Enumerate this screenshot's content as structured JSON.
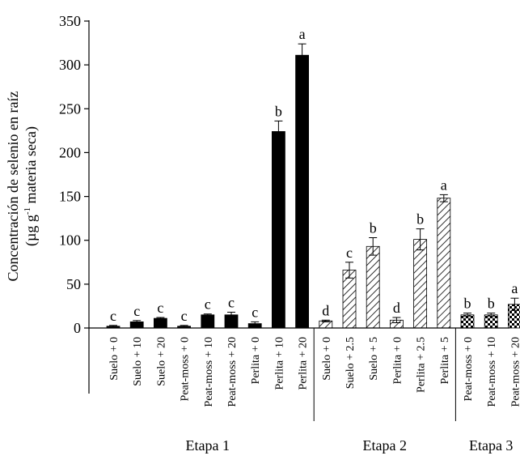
{
  "chart_data": {
    "type": "bar",
    "ylabel_line1": "Concentración de selenio en raíz",
    "ylabel_line2_pre": "(µg g",
    "ylabel_line2_sup": "-1",
    "ylabel_line2_post": " materia seca)",
    "ylim": [
      0,
      350
    ],
    "yticks": [
      "0",
      "50",
      "100",
      "150",
      "200",
      "250",
      "300",
      "350"
    ],
    "grid": false,
    "colors": {
      "solid": "#000000",
      "hatch": "#000000",
      "background": "#ffffff"
    },
    "bars": [
      {
        "label": "Suelo + 0",
        "value": 2,
        "err": 1,
        "letter": "c",
        "fill": "solid",
        "group": 0
      },
      {
        "label": "Suelo + 10",
        "value": 7,
        "err": 1.5,
        "letter": "c",
        "fill": "solid",
        "group": 0
      },
      {
        "label": "Suelo + 20",
        "value": 11,
        "err": 1,
        "letter": "c",
        "fill": "solid",
        "group": 0
      },
      {
        "label": "Peat-moss + 0",
        "value": 2,
        "err": 1,
        "letter": "c",
        "fill": "solid",
        "group": 0
      },
      {
        "label": "Peat-moss + 10",
        "value": 15,
        "err": 1,
        "letter": "c",
        "fill": "solid",
        "group": 0
      },
      {
        "label": "Peat-moss + 20",
        "value": 15,
        "err": 3,
        "letter": "c",
        "fill": "solid",
        "group": 0
      },
      {
        "label": "Perlita + 0",
        "value": 5,
        "err": 2,
        "letter": "c",
        "fill": "solid",
        "group": 0
      },
      {
        "label": "Perlita + 10",
        "value": 224,
        "err": 12,
        "letter": "b",
        "fill": "solid",
        "group": 0
      },
      {
        "label": "Perlita + 20",
        "value": 311,
        "err": 13,
        "letter": "a",
        "fill": "solid",
        "group": 0
      },
      {
        "label": "Suelo + 0",
        "value": 8,
        "err": 1,
        "letter": "d",
        "fill": "hatch",
        "group": 1
      },
      {
        "label": "Suelo + 2.5",
        "value": 66,
        "err": 9,
        "letter": "c",
        "fill": "hatch",
        "group": 1
      },
      {
        "label": "Suelo + 5",
        "value": 93,
        "err": 10,
        "letter": "b",
        "fill": "hatch",
        "group": 1
      },
      {
        "label": "Perlita + 0",
        "value": 9,
        "err": 3,
        "letter": "d",
        "fill": "hatch",
        "group": 1
      },
      {
        "label": "Perlita + 2.5",
        "value": 101,
        "err": 12,
        "letter": "b",
        "fill": "hatch",
        "group": 1
      },
      {
        "label": "Perlita + 5",
        "value": 148,
        "err": 4,
        "letter": "a",
        "fill": "hatch",
        "group": 1
      },
      {
        "label": "Peat-moss + 0",
        "value": 15,
        "err": 2,
        "letter": "b",
        "fill": "checker",
        "group": 2
      },
      {
        "label": "Peat-moss + 10",
        "value": 15,
        "err": 2,
        "letter": "b",
        "fill": "checker",
        "group": 2
      },
      {
        "label": "Peat-moss + 20",
        "value": 27,
        "err": 7,
        "letter": "a",
        "fill": "checker",
        "group": 2
      }
    ],
    "groups": [
      "Etapa 1",
      "Etapa 2",
      "Etapa 3"
    ]
  }
}
